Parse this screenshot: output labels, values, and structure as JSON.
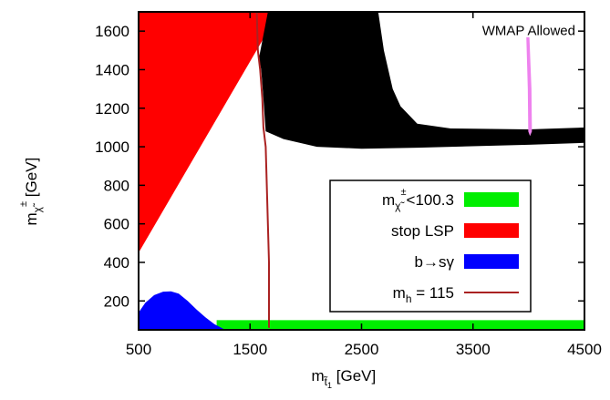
{
  "chart_data": {
    "type": "area",
    "x_axis": {
      "label": {
        "main": "m",
        "sub": "t̃",
        "subsub": "1",
        "unit": " [GeV]"
      },
      "range": [
        500,
        4500
      ],
      "ticks": [
        500,
        1500,
        2500,
        3500,
        4500
      ],
      "tick_labels": [
        "500",
        "1500",
        "2500",
        "3500",
        "4500"
      ]
    },
    "y_axis": {
      "label": {
        "main": "m",
        "sub": "χ̃",
        "sup": "±",
        "unit": " [GeV]"
      },
      "range": [
        50,
        1700
      ],
      "ticks": [
        200,
        400,
        600,
        800,
        1000,
        1200,
        1400,
        1600
      ],
      "tick_labels": [
        "200",
        "400",
        "600",
        "800",
        "1000",
        "1200",
        "1400",
        "1600"
      ]
    },
    "grid": false,
    "legend_position": "center-right",
    "series": [
      {
        "name": "m_chargino<100.3",
        "style": "band",
        "color": "#00ee00",
        "points": [
          [
            1200,
            50
          ],
          [
            4500,
            50
          ],
          [
            4500,
            100.3
          ],
          [
            1200,
            100.3
          ]
        ]
      },
      {
        "name": "stop LSP",
        "style": "region",
        "color": "#ff0000",
        "points": [
          [
            500,
            450
          ],
          [
            1760,
            1700
          ],
          [
            500,
            1700
          ]
        ]
      },
      {
        "name": "b→sγ",
        "style": "region",
        "color": "#0000ff",
        "points": [
          [
            500,
            50
          ],
          [
            500,
            140
          ],
          [
            560,
            190
          ],
          [
            640,
            230
          ],
          [
            720,
            248
          ],
          [
            790,
            250
          ],
          [
            860,
            238
          ],
          [
            940,
            200
          ],
          [
            1020,
            155
          ],
          [
            1100,
            115
          ],
          [
            1180,
            80
          ],
          [
            1260,
            55
          ],
          [
            1300,
            50
          ]
        ]
      },
      {
        "name": "m_h = 115",
        "style": "line",
        "color": "#aa2222",
        "points": [
          [
            1560,
            1700
          ],
          [
            1570,
            1500
          ],
          [
            1590,
            1400
          ],
          [
            1610,
            1250
          ],
          [
            1620,
            1100
          ],
          [
            1640,
            1000
          ],
          [
            1650,
            800
          ],
          [
            1660,
            600
          ],
          [
            1670,
            400
          ],
          [
            1670,
            200
          ],
          [
            1670,
            60
          ]
        ]
      },
      {
        "name": "WMAP Allowed",
        "style": "contour",
        "color": "#ee82ee",
        "points": [
          [
            3985,
            1565
          ],
          [
            3998,
            1300
          ],
          [
            4002,
            1080
          ],
          [
            4012,
            1065
          ],
          [
            4022,
            1080
          ],
          [
            4018,
            1300
          ],
          [
            4000,
            1565
          ]
        ]
      },
      {
        "name": "excluded (black)",
        "style": "region",
        "color": "#000000",
        "points": [
          [
            1580,
            1460
          ],
          [
            1660,
            1700
          ],
          [
            2650,
            1700
          ],
          [
            2700,
            1500
          ],
          [
            2780,
            1300
          ],
          [
            2850,
            1210
          ],
          [
            3000,
            1120
          ],
          [
            3300,
            1095
          ],
          [
            4000,
            1090
          ],
          [
            4500,
            1100
          ],
          [
            4500,
            1020
          ],
          [
            4000,
            1010
          ],
          [
            3000,
            995
          ],
          [
            2500,
            990
          ],
          [
            2100,
            1000
          ],
          [
            1800,
            1040
          ],
          [
            1640,
            1080
          ],
          [
            1620,
            1250
          ],
          [
            1600,
            1400
          ]
        ]
      }
    ],
    "legend": [
      {
        "label": {
          "main": "m",
          "sub": "χ̃",
          "sup": "±",
          "rest": "<100.3"
        },
        "symbol": "box",
        "color": "#00ee00"
      },
      {
        "label": {
          "text": "stop LSP"
        },
        "symbol": "box",
        "color": "#ff0000"
      },
      {
        "label": {
          "text": "b→sγ"
        },
        "symbol": "box",
        "color": "#0000ff"
      },
      {
        "label": {
          "main": "m",
          "sub": "h",
          "rest": " = 115"
        },
        "symbol": "line",
        "color": "#aa2222"
      }
    ],
    "annotations": [
      {
        "text": "WMAP Allowed",
        "x": 4000,
        "y": 1580
      }
    ]
  }
}
